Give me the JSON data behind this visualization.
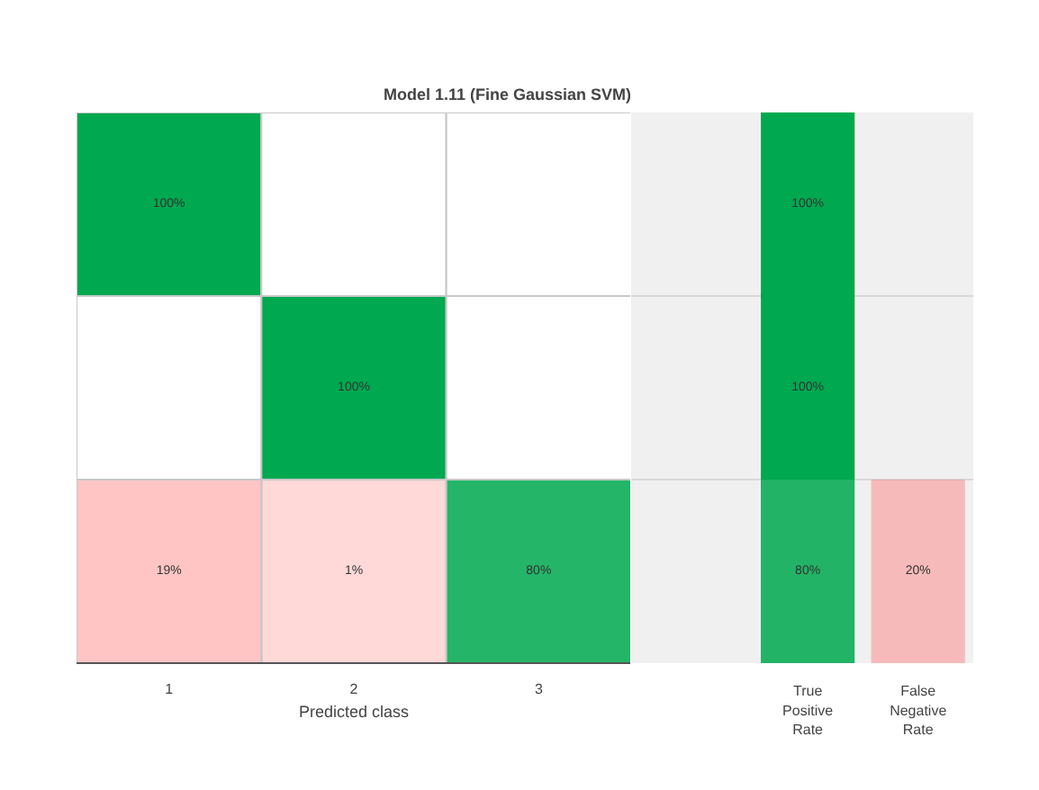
{
  "chart_data": [
    {
      "type": "heatmap",
      "title": "Model 1.11 (Fine Gaussian SVM)",
      "xlabel": "Predicted class",
      "categories": [
        "1",
        "2",
        "3"
      ],
      "y_categories": [
        null,
        null,
        null
      ],
      "cells": [
        [
          100,
          null,
          null
        ],
        [
          null,
          100,
          null
        ],
        [
          19,
          1,
          80
        ]
      ],
      "cell_labels": [
        [
          "100%",
          null,
          null
        ],
        [
          null,
          "100%",
          null
        ],
        [
          "19%",
          "1%",
          "80%"
        ]
      ],
      "colors": [
        "#00a94f",
        "#ff6a6a"
      ],
      "tick_labels": "x"
    },
    {
      "type": "heatmap",
      "categories": [
        "True Positive Rate",
        "False Negative Rate"
      ],
      "y_categories": [
        null,
        null,
        null
      ],
      "cells": [
        [
          100,
          null
        ],
        [
          100,
          null
        ],
        [
          80,
          20
        ]
      ],
      "cell_labels": [
        [
          "100%",
          null
        ],
        [
          "100%",
          null
        ],
        [
          "80%",
          "20%"
        ]
      ],
      "colors": [
        "#00a94f",
        "#ff6a6a"
      ],
      "tick_labels": "x"
    }
  ]
}
